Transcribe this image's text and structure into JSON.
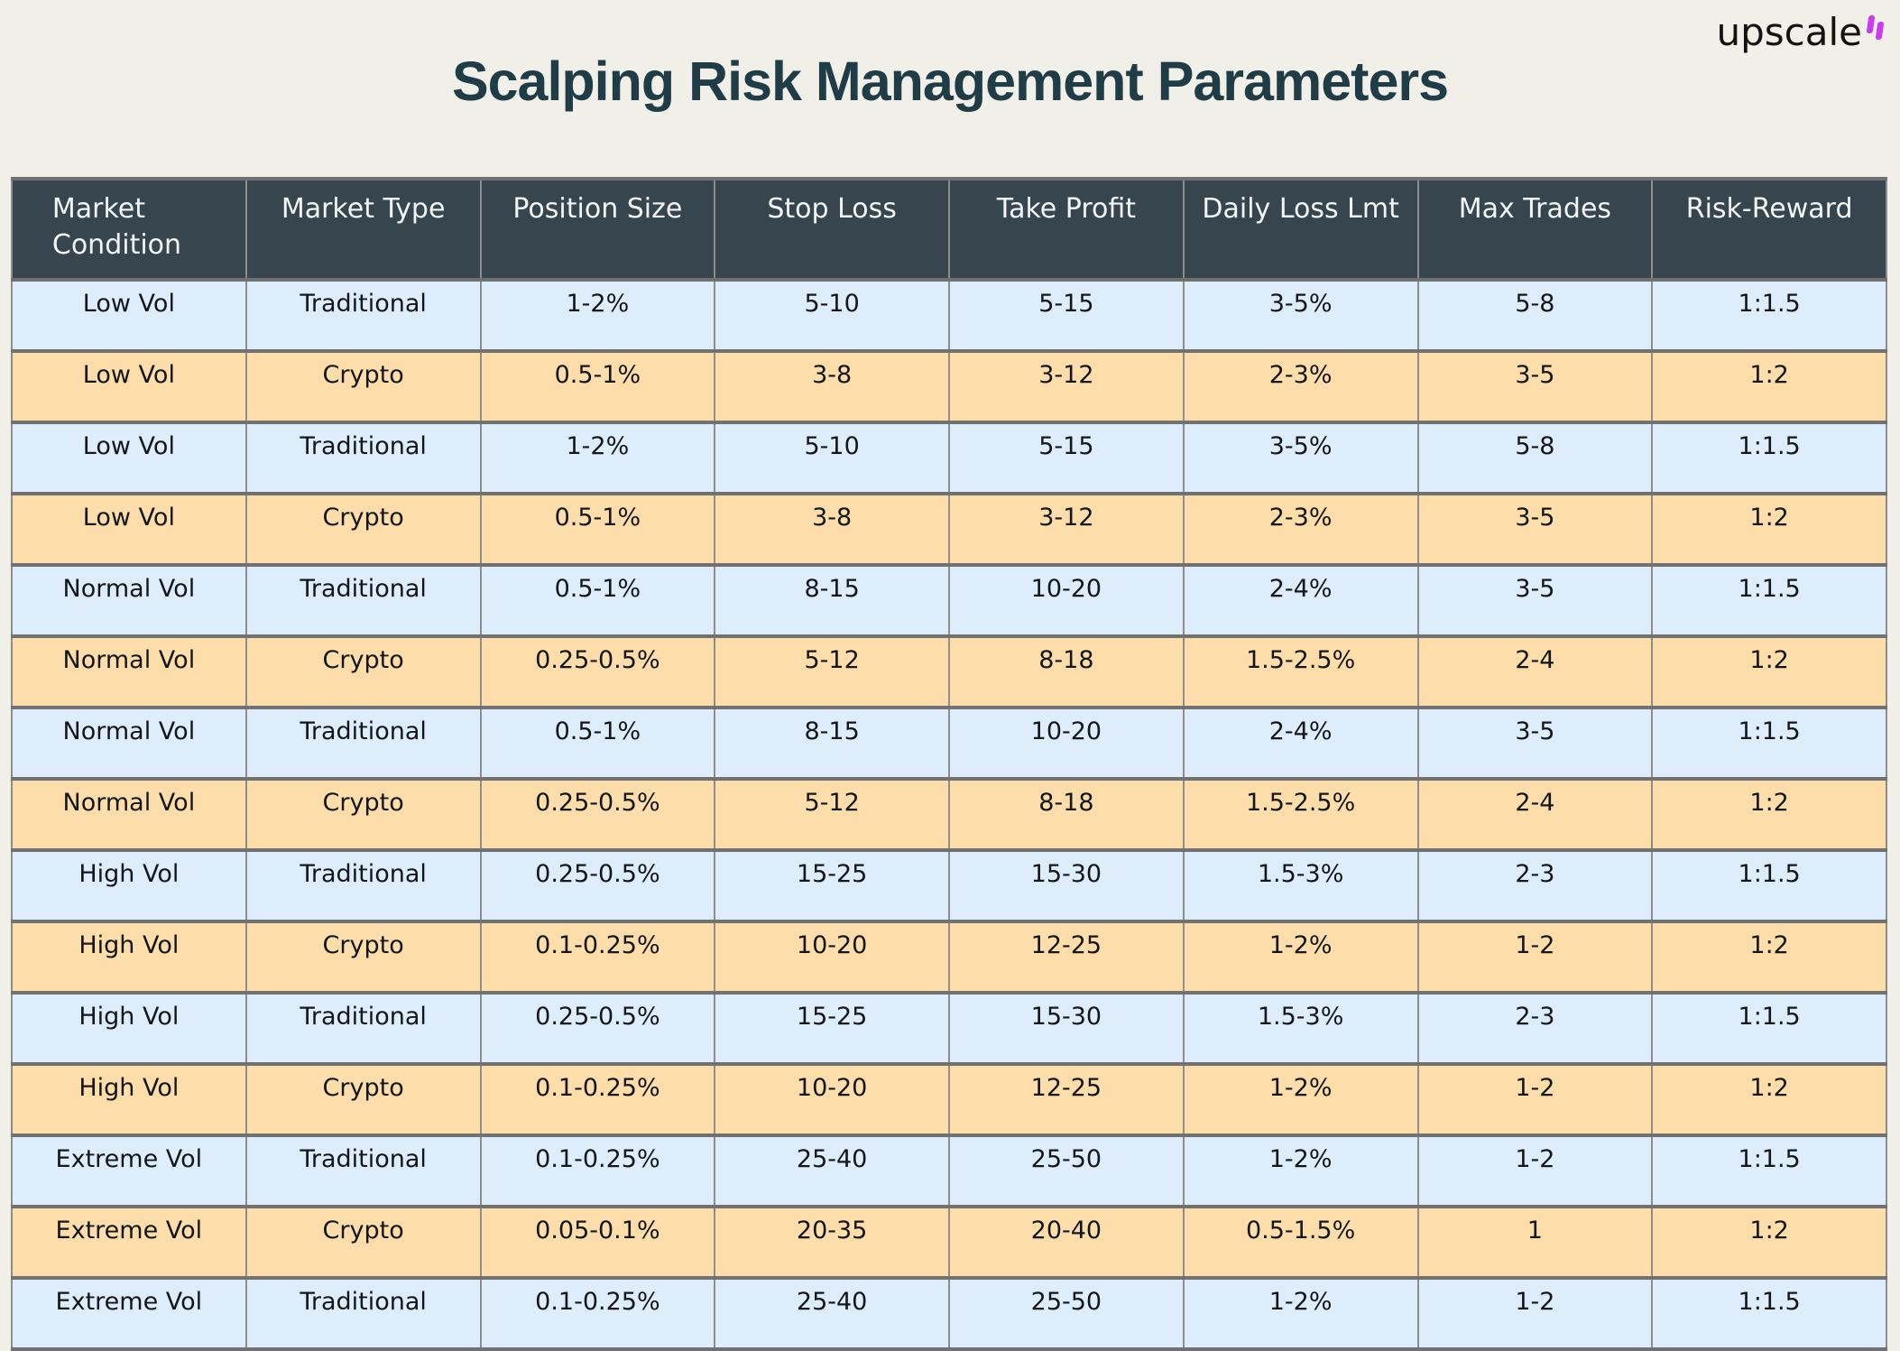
{
  "logo": {
    "text": "upscale"
  },
  "title": "Scalping Risk Management Parameters",
  "colors": {
    "background": "#f0efe8",
    "title_text": "#203c46",
    "header_bg": "#36454e",
    "header_text": "#f2f5f5",
    "row_blue": "#deedfb",
    "row_peach": "#fddda9",
    "grid_line": "#717171",
    "logo_accent": "#cb3bf2"
  },
  "table": {
    "columns": [
      "Market Condition",
      "Market Type",
      "Position Size",
      "Stop Loss",
      "Take Profit",
      "Daily Loss Lmt",
      "Max Trades",
      "Risk-Reward"
    ],
    "rows": [
      [
        "Low Vol",
        "Traditional",
        "1-2%",
        "5-10",
        "5-15",
        "3-5%",
        "5-8",
        "1:1.5"
      ],
      [
        "Low Vol",
        "Crypto",
        "0.5-1%",
        "3-8",
        "3-12",
        "2-3%",
        "3-5",
        "1:2"
      ],
      [
        "Low Vol",
        "Traditional",
        "1-2%",
        "5-10",
        "5-15",
        "3-5%",
        "5-8",
        "1:1.5"
      ],
      [
        "Low Vol",
        "Crypto",
        "0.5-1%",
        "3-8",
        "3-12",
        "2-3%",
        "3-5",
        "1:2"
      ],
      [
        "Normal Vol",
        "Traditional",
        "0.5-1%",
        "8-15",
        "10-20",
        "2-4%",
        "3-5",
        "1:1.5"
      ],
      [
        "Normal Vol",
        "Crypto",
        "0.25-0.5%",
        "5-12",
        "8-18",
        "1.5-2.5%",
        "2-4",
        "1:2"
      ],
      [
        "Normal Vol",
        "Traditional",
        "0.5-1%",
        "8-15",
        "10-20",
        "2-4%",
        "3-5",
        "1:1.5"
      ],
      [
        "Normal Vol",
        "Crypto",
        "0.25-0.5%",
        "5-12",
        "8-18",
        "1.5-2.5%",
        "2-4",
        "1:2"
      ],
      [
        "High Vol",
        "Traditional",
        "0.25-0.5%",
        "15-25",
        "15-30",
        "1.5-3%",
        "2-3",
        "1:1.5"
      ],
      [
        "High Vol",
        "Crypto",
        "0.1-0.25%",
        "10-20",
        "12-25",
        "1-2%",
        "1-2",
        "1:2"
      ],
      [
        "High Vol",
        "Traditional",
        "0.25-0.5%",
        "15-25",
        "15-30",
        "1.5-3%",
        "2-3",
        "1:1.5"
      ],
      [
        "High Vol",
        "Crypto",
        "0.1-0.25%",
        "10-20",
        "12-25",
        "1-2%",
        "1-2",
        "1:2"
      ],
      [
        "Extreme Vol",
        "Traditional",
        "0.1-0.25%",
        "25-40",
        "25-50",
        "1-2%",
        "1-2",
        "1:1.5"
      ],
      [
        "Extreme Vol",
        "Crypto",
        "0.05-0.1%",
        "20-35",
        "20-40",
        "0.5-1.5%",
        "1",
        "1:2"
      ],
      [
        "Extreme Vol",
        "Traditional",
        "0.1-0.25%",
        "25-40",
        "25-50",
        "1-2%",
        "1-2",
        "1:1.5"
      ]
    ]
  }
}
